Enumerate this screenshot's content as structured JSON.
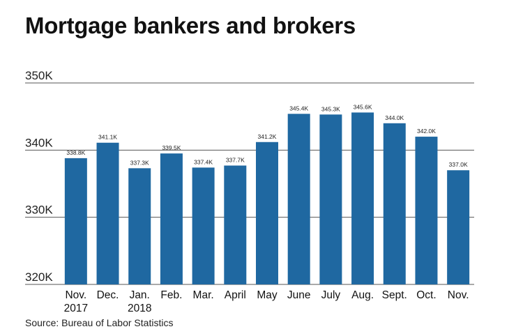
{
  "title": "Mortgage bankers and brokers",
  "source": "Source: Bureau of Labor Statistics",
  "colors": {
    "bar": "#1f68a1",
    "grid": "#555555"
  },
  "chart_data": {
    "type": "bar",
    "title": "Mortgage bankers and brokers",
    "categories": [
      [
        "Nov.",
        "2017"
      ],
      [
        "Dec."
      ],
      [
        "Jan.",
        "2018"
      ],
      [
        "Feb."
      ],
      [
        "Mar."
      ],
      [
        "April"
      ],
      [
        "May"
      ],
      [
        "June"
      ],
      [
        "July"
      ],
      [
        "Aug."
      ],
      [
        "Sept."
      ],
      [
        "Oct."
      ],
      [
        "Nov."
      ]
    ],
    "values": [
      338.8,
      341.1,
      337.3,
      339.5,
      337.4,
      337.7,
      341.2,
      345.4,
      345.3,
      345.6,
      344.0,
      342.0,
      337.0
    ],
    "data_labels": [
      "338.8K",
      "341.1K",
      "337.3K",
      "339.5K",
      "337.4K",
      "337.7K",
      "341.2K",
      "345.4K",
      "345.3K",
      "345.6K",
      "344.0K",
      "342.0K",
      "337.0K"
    ],
    "yticks": [
      320,
      330,
      340,
      350
    ],
    "ytick_labels": [
      "320K",
      "330K",
      "340K",
      "350K"
    ],
    "ylim": [
      320,
      350
    ],
    "xlabel": "",
    "ylabel": "",
    "grid": true
  }
}
